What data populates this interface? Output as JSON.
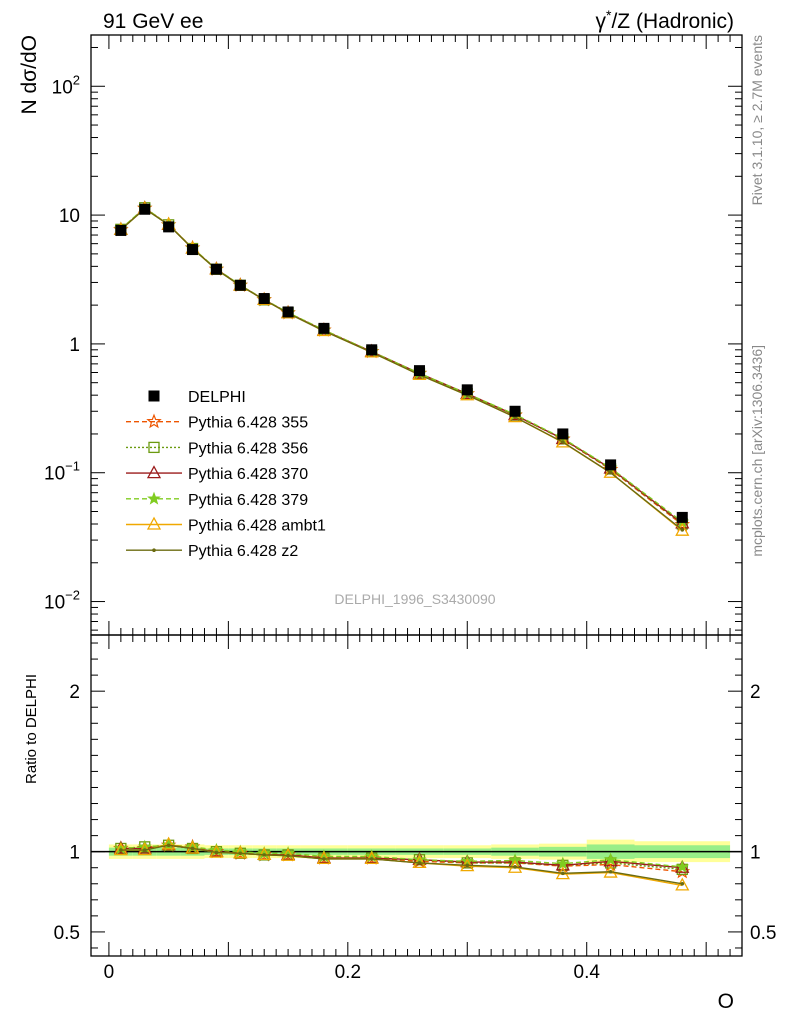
{
  "header": {
    "left": "91 GeV ee",
    "right_prefix": "γ",
    "right_star": "*",
    "right_suffix": "/Z (Hadronic)"
  },
  "side": {
    "rivet": "Rivet 3.1.10, ≥ 2.7M events",
    "mcplots": "mcplots.cern.ch [arXiv:1306.3436]"
  },
  "watermark": "DELPHI_1996_S3430090",
  "chart_data": [
    {
      "type": "line",
      "yscale": "log",
      "ylabel": "N dσ/dO",
      "xlim": [
        -0.015,
        0.53
      ],
      "ylim": [
        0.0055,
        250
      ],
      "ytick_labels": [
        {
          "value": 0.01,
          "base": "10",
          "exp": "−2"
        },
        {
          "value": 0.1,
          "base": "10",
          "exp": "−1"
        },
        {
          "value": 1,
          "base": "1",
          "exp": ""
        },
        {
          "value": 10,
          "base": "10",
          "exp": ""
        },
        {
          "value": 100,
          "base": "10",
          "exp": "2"
        }
      ],
      "x": [
        0.01,
        0.03,
        0.05,
        0.07,
        0.09,
        0.11,
        0.13,
        0.15,
        0.18,
        0.22,
        0.26,
        0.3,
        0.34,
        0.38,
        0.42,
        0.48
      ],
      "data": {
        "name": "DELPHI",
        "values": [
          7.6,
          11.1,
          8.1,
          5.4,
          3.8,
          2.85,
          2.25,
          1.77,
          1.32,
          0.9,
          0.62,
          0.44,
          0.3,
          0.2,
          0.115,
          0.045
        ]
      },
      "series": [
        {
          "name": "Pythia 6.428 355",
          "color": "#ee5500",
          "dash": "5,3",
          "marker": "star-open",
          "values": [
            7.7,
            11.3,
            8.4,
            5.55,
            3.8,
            2.85,
            2.2,
            1.74,
            1.28,
            0.87,
            0.59,
            0.41,
            0.28,
            0.182,
            0.106,
            0.0395
          ]
        },
        {
          "name": "Pythia 6.428 356",
          "color": "#6b9a10",
          "dash": "2,2",
          "marker": "square-open",
          "values": [
            7.75,
            11.4,
            8.4,
            5.5,
            3.8,
            2.85,
            2.2,
            1.75,
            1.28,
            0.87,
            0.59,
            0.41,
            0.28,
            0.183,
            0.107,
            0.04
          ]
        },
        {
          "name": "Pythia 6.428 370",
          "color": "#9b1b1b",
          "dash": "",
          "marker": "triangle-open",
          "values": [
            7.7,
            11.3,
            8.4,
            5.5,
            3.8,
            2.85,
            2.2,
            1.74,
            1.27,
            0.87,
            0.59,
            0.41,
            0.28,
            0.183,
            0.108,
            0.0405
          ]
        },
        {
          "name": "Pythia 6.428 379",
          "color": "#80cc20",
          "dash": "5,3",
          "marker": "star",
          "values": [
            7.8,
            11.4,
            8.4,
            5.55,
            3.82,
            2.86,
            2.21,
            1.75,
            1.28,
            0.87,
            0.59,
            0.41,
            0.283,
            0.185,
            0.109,
            0.0415
          ]
        },
        {
          "name": "Pythia 6.428 ambt1",
          "color": "#f0a800",
          "dash": "",
          "marker": "triangle-open",
          "values": [
            7.7,
            11.2,
            8.45,
            5.5,
            3.78,
            2.83,
            2.2,
            1.73,
            1.26,
            0.86,
            0.575,
            0.4,
            0.27,
            0.172,
            0.1,
            0.0355
          ]
        },
        {
          "name": "Pythia 6.428 z2",
          "color": "#6b6b10",
          "dash": "",
          "marker": "dot",
          "values": [
            7.7,
            11.2,
            8.4,
            5.5,
            3.78,
            2.83,
            2.2,
            1.73,
            1.26,
            0.86,
            0.575,
            0.4,
            0.27,
            0.173,
            0.1,
            0.036
          ]
        }
      ],
      "legend_position": "lower-left"
    },
    {
      "type": "line",
      "ylabel": "Ratio to DELPHI",
      "xlabel": "O",
      "xlim": [
        -0.015,
        0.53
      ],
      "ylim": [
        0.35,
        2.35
      ],
      "yticks": [
        0.5,
        1,
        2
      ],
      "ytick_labels": [
        "0.5",
        "1",
        "2"
      ],
      "xticks": [
        0,
        0.2,
        0.4
      ],
      "xtick_labels": [
        "0",
        "0.2",
        "0.4"
      ],
      "uncertainty_bands": [
        {
          "x": [
            0.0,
            0.02
          ],
          "inner": 0.025,
          "outer": 0.045
        },
        {
          "x": [
            0.02,
            0.04
          ],
          "inner": 0.025,
          "outer": 0.045
        },
        {
          "x": [
            0.04,
            0.06
          ],
          "inner": 0.025,
          "outer": 0.045
        },
        {
          "x": [
            0.06,
            0.08
          ],
          "inner": 0.025,
          "outer": 0.045
        },
        {
          "x": [
            0.08,
            0.1
          ],
          "inner": 0.02,
          "outer": 0.04
        },
        {
          "x": [
            0.1,
            0.12
          ],
          "inner": 0.02,
          "outer": 0.04
        },
        {
          "x": [
            0.12,
            0.14
          ],
          "inner": 0.02,
          "outer": 0.04
        },
        {
          "x": [
            0.14,
            0.16
          ],
          "inner": 0.02,
          "outer": 0.04
        },
        {
          "x": [
            0.16,
            0.2
          ],
          "inner": 0.02,
          "outer": 0.04
        },
        {
          "x": [
            0.2,
            0.24
          ],
          "inner": 0.02,
          "outer": 0.04
        },
        {
          "x": [
            0.24,
            0.28
          ],
          "inner": 0.02,
          "outer": 0.04
        },
        {
          "x": [
            0.28,
            0.32
          ],
          "inner": 0.02,
          "outer": 0.04
        },
        {
          "x": [
            0.32,
            0.36
          ],
          "inner": 0.025,
          "outer": 0.045
        },
        {
          "x": [
            0.36,
            0.4
          ],
          "inner": 0.03,
          "outer": 0.05
        },
        {
          "x": [
            0.4,
            0.44
          ],
          "inner": 0.045,
          "outer": 0.075
        },
        {
          "x": [
            0.44,
            0.52
          ],
          "inner": 0.04,
          "outer": 0.065
        }
      ],
      "series": [
        {
          "name": "Pythia 6.428 355",
          "values": [
            1.02,
            1.02,
            1.04,
            1.03,
            1.0,
            0.99,
            0.98,
            0.98,
            0.96,
            0.96,
            0.94,
            0.93,
            0.93,
            0.91,
            0.92,
            0.875
          ]
        },
        {
          "name": "Pythia 6.428 356",
          "values": [
            1.02,
            1.03,
            1.04,
            1.02,
            1.0,
            0.99,
            0.98,
            0.98,
            0.96,
            0.96,
            0.95,
            0.93,
            0.93,
            0.915,
            0.93,
            0.89
          ]
        },
        {
          "name": "Pythia 6.428 370",
          "values": [
            1.02,
            1.02,
            1.04,
            1.02,
            1.0,
            0.99,
            0.98,
            0.98,
            0.96,
            0.96,
            0.95,
            0.935,
            0.935,
            0.915,
            0.94,
            0.9
          ]
        },
        {
          "name": "Pythia 6.428 379",
          "values": [
            1.02,
            1.03,
            1.04,
            1.03,
            1.01,
            1.0,
            0.99,
            0.99,
            0.97,
            0.97,
            0.95,
            0.94,
            0.945,
            0.925,
            0.95,
            0.905
          ]
        },
        {
          "name": "Pythia 6.428 ambt1",
          "values": [
            1.01,
            1.01,
            1.045,
            1.02,
            0.995,
            0.99,
            0.98,
            0.975,
            0.955,
            0.955,
            0.93,
            0.91,
            0.9,
            0.86,
            0.87,
            0.79
          ]
        },
        {
          "name": "Pythia 6.428 z2",
          "values": [
            1.01,
            1.01,
            1.04,
            1.02,
            0.995,
            0.99,
            0.98,
            0.975,
            0.955,
            0.955,
            0.93,
            0.915,
            0.905,
            0.865,
            0.875,
            0.8
          ]
        }
      ]
    }
  ]
}
